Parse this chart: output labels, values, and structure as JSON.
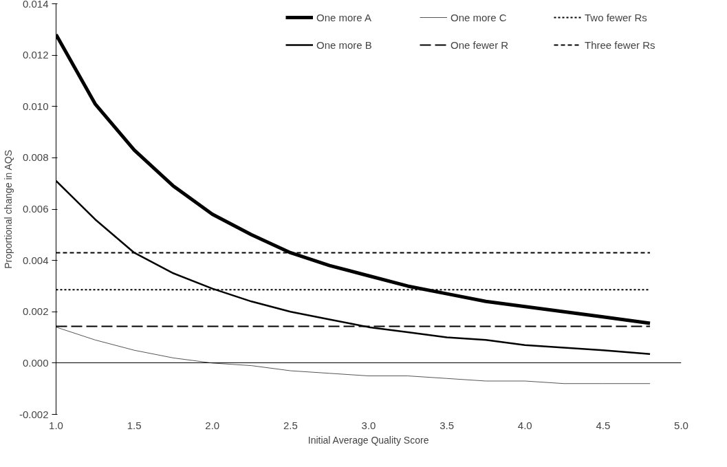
{
  "chart_data": {
    "type": "line",
    "xlabel": "Initial Average Quality Score",
    "ylabel": "Proportional change in AQS",
    "x": [
      1.0,
      1.25,
      1.5,
      1.75,
      2.0,
      2.25,
      2.5,
      2.75,
      3.0,
      3.25,
      3.5,
      3.75,
      4.0,
      4.25,
      4.5,
      4.8
    ],
    "series": [
      {
        "name": "One more A",
        "color": "#000000",
        "line_style": "solid",
        "values": [
          0.0128,
          0.0101,
          0.0083,
          0.0069,
          0.0058,
          0.005,
          0.0043,
          0.0038,
          0.0034,
          0.003,
          0.0027,
          0.0024,
          0.0022,
          0.002,
          0.0018,
          0.00155
        ]
      },
      {
        "name": "One more B",
        "color": "#000000",
        "line_style": "solid",
        "values": [
          0.0071,
          0.0056,
          0.0043,
          0.0035,
          0.0029,
          0.0024,
          0.002,
          0.0017,
          0.0014,
          0.0012,
          0.001,
          0.0009,
          0.0007,
          0.0006,
          0.0005,
          0.00035
        ]
      },
      {
        "name": "One more C",
        "color": "#555555",
        "line_style": "solid",
        "values": [
          0.0014,
          0.0009,
          0.0005,
          0.0002,
          0.0,
          -0.0001,
          -0.0003,
          -0.0004,
          -0.0005,
          -0.0005,
          -0.0006,
          -0.0007,
          -0.0007,
          -0.0008,
          -0.0008,
          -0.0008
        ]
      },
      {
        "name": "One fewer R",
        "color": "#000000",
        "line_style": "longdash",
        "values": [
          0.00143,
          0.00143,
          0.00143,
          0.00143,
          0.00143,
          0.00143,
          0.00143,
          0.00143,
          0.00143,
          0.00143,
          0.00143,
          0.00143,
          0.00143,
          0.00143,
          0.00143,
          0.00143
        ]
      },
      {
        "name": "Two fewer Rs",
        "color": "#000000",
        "line_style": "dotted",
        "values": [
          0.00286,
          0.00286,
          0.00286,
          0.00286,
          0.00286,
          0.00286,
          0.00286,
          0.00286,
          0.00286,
          0.00286,
          0.00286,
          0.00286,
          0.00286,
          0.00286,
          0.00286,
          0.00286
        ]
      },
      {
        "name": "Three fewer Rs",
        "color": "#000000",
        "line_style": "dashed",
        "values": [
          0.0043,
          0.0043,
          0.0043,
          0.0043,
          0.0043,
          0.0043,
          0.0043,
          0.0043,
          0.0043,
          0.0043,
          0.0043,
          0.0043,
          0.0043,
          0.0043,
          0.0043,
          0.0043
        ]
      }
    ],
    "xlim": [
      1.0,
      5.0
    ],
    "xticks": [
      {
        "value": 1,
        "label": "1.0"
      },
      1.5,
      {
        "value": 2,
        "label": "2.0"
      },
      2.5,
      {
        "value": 3,
        "label": "3.0"
      },
      3.5,
      {
        "value": 4,
        "label": "4.0"
      },
      4.5,
      {
        "value": 5,
        "label": "5.0"
      }
    ],
    "ylim": [
      -0.002,
      0.014
    ],
    "yticks": [
      {
        "value": -0.002,
        "label": "-0.002"
      },
      {
        "value": 0,
        "label": "0.000"
      },
      {
        "value": 0.002,
        "label": "0.002"
      },
      {
        "value": 0.004,
        "label": "0.004"
      },
      {
        "value": 0.006,
        "label": "0.006"
      },
      {
        "value": 0.008,
        "label": "0.008"
      },
      {
        "value": 0.01,
        "label": "0.010"
      },
      {
        "value": 0.012,
        "label": "0.012"
      },
      {
        "value": 0.014,
        "label": "0.014"
      }
    ],
    "grid": false,
    "legend": "top right"
  }
}
